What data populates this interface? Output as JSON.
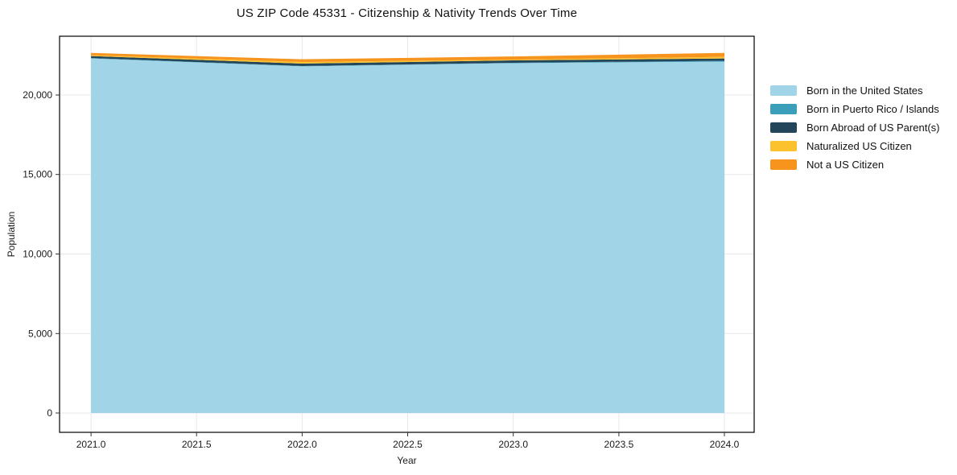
{
  "chart_data": {
    "type": "area",
    "stacked": true,
    "title": "US ZIP Code 45331 - Citizenship & Nativity Trends Over Time",
    "xlabel": "Year",
    "ylabel": "Population",
    "x": [
      2021,
      2022,
      2023,
      2024
    ],
    "series": [
      {
        "name": "Born in the United States",
        "color": "#A2D4E8",
        "values": [
          22300,
          21800,
          22000,
          22100
        ]
      },
      {
        "name": "Born in Puerto Rico / Islands",
        "color": "#3B9FBA",
        "values": [
          25,
          25,
          25,
          50
        ]
      },
      {
        "name": "Born Abroad of US Parent(s)",
        "color": "#24465A",
        "values": [
          125,
          150,
          150,
          150
        ]
      },
      {
        "name": "Naturalized US Citizen",
        "color": "#FBC22D",
        "values": [
          50,
          100,
          50,
          100
        ]
      },
      {
        "name": "Not a US Citizen",
        "color": "#F6941E",
        "values": [
          150,
          175,
          200,
          250
        ]
      }
    ],
    "x_tick_values": [
      2021.0,
      2021.5,
      2022.0,
      2022.5,
      2023.0,
      2023.5,
      2024.0
    ],
    "x_tick_labels": [
      "2021.0",
      "2021.5",
      "2022.0",
      "2022.5",
      "2023.0",
      "2023.5",
      "2024.0"
    ],
    "y_tick_values": [
      0,
      5000,
      10000,
      15000,
      20000
    ],
    "y_tick_labels": [
      "0",
      "5,000",
      "10,000",
      "15,000",
      "20,000"
    ],
    "xlim": [
      2020.851,
      2024.141
    ],
    "ylim": [
      -1215,
      23696
    ],
    "grid": true,
    "legend_position": "right",
    "colors": {
      "grid": "#e8e8e8",
      "axis": "#000000",
      "tick": "#333333",
      "text": "#1a1a1a",
      "background": "#ffffff"
    }
  }
}
